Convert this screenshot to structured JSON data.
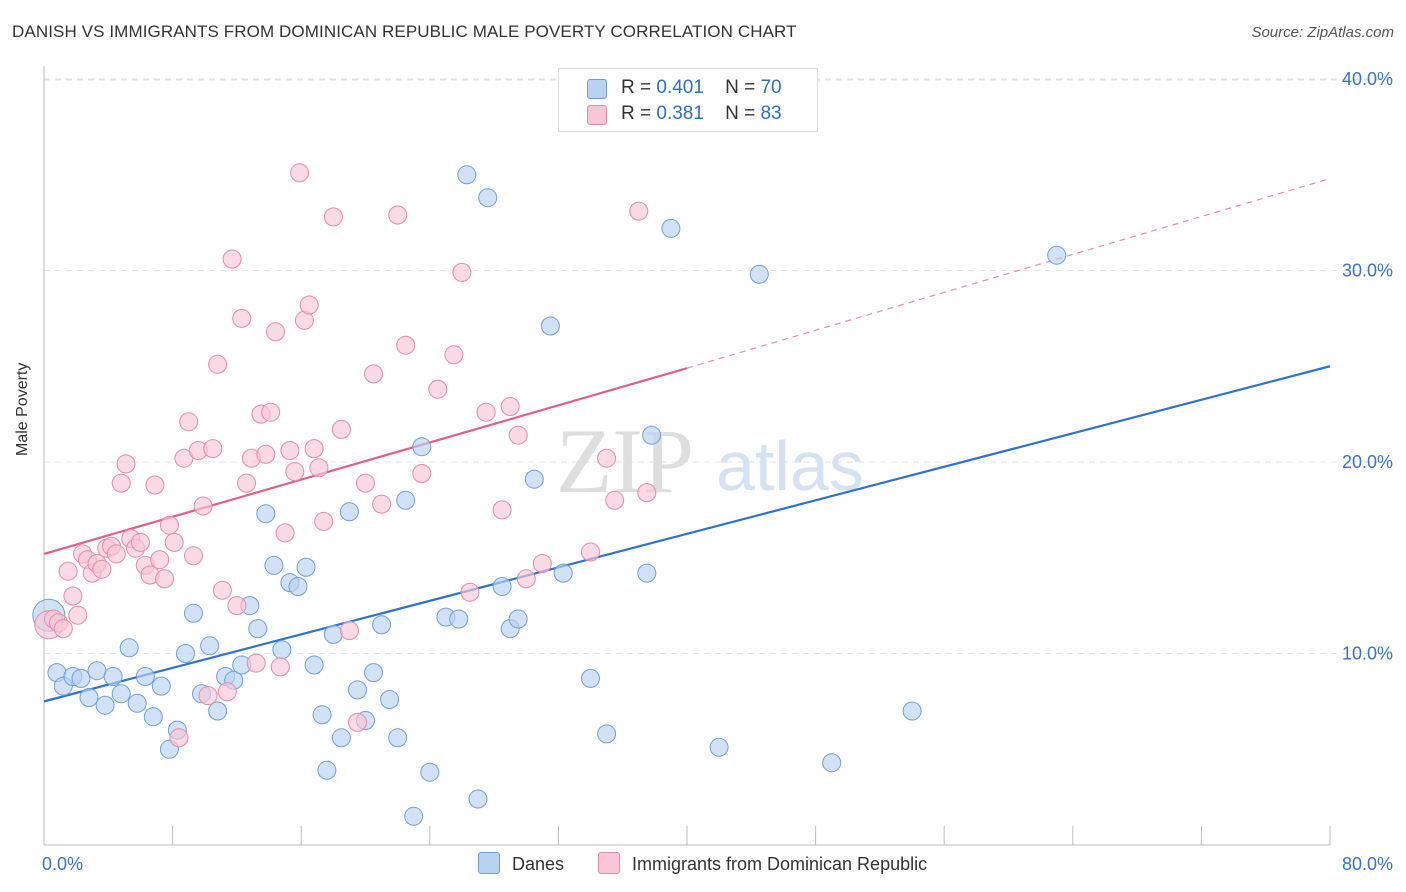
{
  "title": "DANISH VS IMMIGRANTS FROM DOMINICAN REPUBLIC MALE POVERTY CORRELATION CHART",
  "source": "Source: ZipAtlas.com",
  "watermark": {
    "zip": "ZIP",
    "atlas": "atlas"
  },
  "legend_top": {
    "danes": {
      "r_label": "R =",
      "r_value": "0.401",
      "n_label": "N =",
      "n_value": "70"
    },
    "dominican": {
      "r_label": "R =",
      "r_value": "0.381",
      "n_label": "N =",
      "n_value": "83"
    }
  },
  "legend_bottom": {
    "danes": "Danes",
    "dominican": "Immigrants from Dominican Republic"
  },
  "colors": {
    "danes_fill": "#b8d2f2",
    "danes_stroke": "#6f9fd8",
    "danes_line": "#2f74cc",
    "dominican_fill": "#f8c6d6",
    "dominican_stroke": "#e88aa8",
    "dominican_line": "#e0608a",
    "tick_label": "#3b72c4",
    "grid": "#e3e3e3"
  },
  "chart_data": {
    "type": "scatter",
    "title": "DANISH VS IMMIGRANTS FROM DOMINICAN REPUBLIC MALE POVERTY CORRELATION CHART",
    "xlabel": "",
    "ylabel": "Male Poverty",
    "xlim": [
      0,
      80
    ],
    "ylim": [
      0,
      42
    ],
    "x_tick_labels": [
      "0.0%",
      "80.0%"
    ],
    "y_ticks": [
      10,
      20,
      30,
      40
    ],
    "y_tick_labels": [
      "10.0%",
      "20.0%",
      "30.0%",
      "40.0%"
    ],
    "grid": true,
    "legend_position": "top-center",
    "series": [
      {
        "name": "Danes",
        "r": 0.401,
        "n": 70,
        "trend": {
          "x": [
            0,
            80
          ],
          "y": [
            7.5,
            25.0
          ],
          "dashed_beyond": null
        },
        "points": [
          [
            0.3,
            12.0
          ],
          [
            0.8,
            9.0
          ],
          [
            1.2,
            8.3
          ],
          [
            1.8,
            8.8
          ],
          [
            2.3,
            8.7
          ],
          [
            2.8,
            7.7
          ],
          [
            3.3,
            9.1
          ],
          [
            3.8,
            7.3
          ],
          [
            4.3,
            8.8
          ],
          [
            4.8,
            7.9
          ],
          [
            5.3,
            10.3
          ],
          [
            5.8,
            7.4
          ],
          [
            6.3,
            8.8
          ],
          [
            6.8,
            6.7
          ],
          [
            7.3,
            8.3
          ],
          [
            7.8,
            5.0
          ],
          [
            8.3,
            6.0
          ],
          [
            8.8,
            10.0
          ],
          [
            9.3,
            12.1
          ],
          [
            9.8,
            7.9
          ],
          [
            10.3,
            10.4
          ],
          [
            10.8,
            7.0
          ],
          [
            11.3,
            8.8
          ],
          [
            11.8,
            8.6
          ],
          [
            12.3,
            9.4
          ],
          [
            12.8,
            12.5
          ],
          [
            13.3,
            11.3
          ],
          [
            13.8,
            17.3
          ],
          [
            14.3,
            14.6
          ],
          [
            14.8,
            10.2
          ],
          [
            15.3,
            13.7
          ],
          [
            15.8,
            13.5
          ],
          [
            16.3,
            14.5
          ],
          [
            16.8,
            9.4
          ],
          [
            17.3,
            6.8
          ],
          [
            17.6,
            3.9
          ],
          [
            18.0,
            11.0
          ],
          [
            18.5,
            5.6
          ],
          [
            19.0,
            17.4
          ],
          [
            19.5,
            8.1
          ],
          [
            20.0,
            6.5
          ],
          [
            20.5,
            9.0
          ],
          [
            21.0,
            11.5
          ],
          [
            21.5,
            7.6
          ],
          [
            22.0,
            5.6
          ],
          [
            22.5,
            18.0
          ],
          [
            23.0,
            1.5
          ],
          [
            23.5,
            20.8
          ],
          [
            24.0,
            3.8
          ],
          [
            25.0,
            11.9
          ],
          [
            25.8,
            11.8
          ],
          [
            26.3,
            35.0
          ],
          [
            27.0,
            2.4
          ],
          [
            27.6,
            33.8
          ],
          [
            28.5,
            13.5
          ],
          [
            29.0,
            11.3
          ],
          [
            29.5,
            11.8
          ],
          [
            30.5,
            19.1
          ],
          [
            31.5,
            27.1
          ],
          [
            32.3,
            14.2
          ],
          [
            34.0,
            8.7
          ],
          [
            35.0,
            5.8
          ],
          [
            37.5,
            14.2
          ],
          [
            37.8,
            21.4
          ],
          [
            39.0,
            32.2
          ],
          [
            42.0,
            5.1
          ],
          [
            44.5,
            29.8
          ],
          [
            49.0,
            4.3
          ],
          [
            54.0,
            7.0
          ],
          [
            63.0,
            30.8
          ]
        ]
      },
      {
        "name": "Immigrants from Dominican Republic",
        "r": 0.381,
        "n": 83,
        "trend": {
          "x": [
            0,
            40
          ],
          "y": [
            15.2,
            24.9
          ],
          "dashed_to": [
            80,
            34.8
          ]
        },
        "points": [
          [
            0.3,
            11.5
          ],
          [
            0.6,
            11.8
          ],
          [
            0.9,
            11.6
          ],
          [
            1.2,
            11.3
          ],
          [
            1.5,
            14.3
          ],
          [
            1.8,
            13.0
          ],
          [
            2.1,
            12.0
          ],
          [
            2.4,
            15.2
          ],
          [
            2.7,
            14.9
          ],
          [
            3.0,
            14.2
          ],
          [
            3.3,
            14.7
          ],
          [
            3.6,
            14.4
          ],
          [
            3.9,
            15.5
          ],
          [
            4.2,
            15.6
          ],
          [
            4.5,
            15.2
          ],
          [
            4.8,
            18.9
          ],
          [
            5.1,
            19.9
          ],
          [
            5.4,
            16.0
          ],
          [
            5.7,
            15.5
          ],
          [
            6.0,
            15.8
          ],
          [
            6.3,
            14.6
          ],
          [
            6.6,
            14.1
          ],
          [
            6.9,
            18.8
          ],
          [
            7.2,
            14.9
          ],
          [
            7.5,
            13.9
          ],
          [
            7.8,
            16.7
          ],
          [
            8.1,
            15.8
          ],
          [
            8.4,
            5.6
          ],
          [
            8.7,
            20.2
          ],
          [
            9.0,
            22.1
          ],
          [
            9.3,
            15.1
          ],
          [
            9.6,
            20.6
          ],
          [
            9.9,
            17.7
          ],
          [
            10.2,
            7.8
          ],
          [
            10.5,
            20.7
          ],
          [
            10.8,
            25.1
          ],
          [
            11.1,
            13.3
          ],
          [
            11.4,
            8.0
          ],
          [
            11.7,
            30.6
          ],
          [
            12.0,
            12.5
          ],
          [
            12.3,
            27.5
          ],
          [
            12.6,
            18.9
          ],
          [
            12.9,
            20.2
          ],
          [
            13.2,
            9.5
          ],
          [
            13.5,
            22.5
          ],
          [
            13.8,
            20.4
          ],
          [
            14.1,
            22.6
          ],
          [
            14.4,
            26.8
          ],
          [
            14.7,
            9.3
          ],
          [
            15.0,
            16.3
          ],
          [
            15.3,
            20.6
          ],
          [
            15.6,
            19.5
          ],
          [
            15.9,
            35.1
          ],
          [
            16.2,
            27.4
          ],
          [
            16.5,
            28.2
          ],
          [
            16.8,
            20.7
          ],
          [
            17.1,
            19.7
          ],
          [
            17.4,
            16.9
          ],
          [
            18.0,
            32.8
          ],
          [
            18.5,
            21.7
          ],
          [
            19.0,
            11.2
          ],
          [
            19.5,
            6.4
          ],
          [
            20.0,
            18.9
          ],
          [
            20.5,
            24.6
          ],
          [
            21.0,
            17.8
          ],
          [
            22.0,
            32.9
          ],
          [
            22.5,
            26.1
          ],
          [
            23.5,
            19.4
          ],
          [
            24.5,
            23.8
          ],
          [
            25.5,
            25.6
          ],
          [
            26.0,
            29.9
          ],
          [
            26.5,
            13.2
          ],
          [
            27.5,
            22.6
          ],
          [
            28.5,
            17.5
          ],
          [
            29.0,
            22.9
          ],
          [
            29.5,
            21.4
          ],
          [
            30.0,
            13.9
          ],
          [
            31.0,
            14.7
          ],
          [
            34.0,
            15.3
          ],
          [
            35.0,
            20.2
          ],
          [
            35.5,
            18.0
          ],
          [
            37.0,
            33.1
          ],
          [
            37.5,
            18.4
          ]
        ]
      }
    ]
  }
}
